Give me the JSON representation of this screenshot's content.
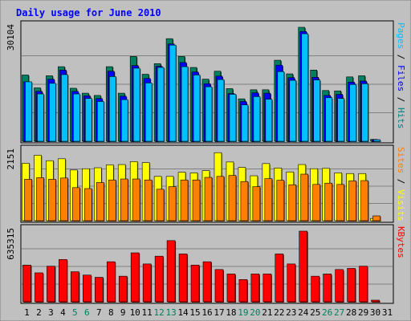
{
  "chart_data": {
    "type": "bar",
    "title": "Daily usage for June 2010",
    "categories": [
      "1",
      "2",
      "3",
      "4",
      "5",
      "6",
      "7",
      "8",
      "9",
      "10",
      "11",
      "12",
      "13",
      "14",
      "15",
      "16",
      "17",
      "18",
      "19",
      "20",
      "21",
      "22",
      "23",
      "24",
      "25",
      "26",
      "27",
      "28",
      "29",
      "30",
      "31"
    ],
    "weekend_days": [
      "5",
      "6",
      "12",
      "13",
      "19",
      "20",
      "26",
      "27"
    ],
    "panels": [
      {
        "id": "hits",
        "max_label": "30104",
        "ymax": 30104,
        "right_labels": [
          {
            "text": "Pages",
            "color": "#00c0ff"
          },
          {
            "text": " / ",
            "color": "#000000"
          },
          {
            "text": "Files",
            "color": "#0000ff"
          },
          {
            "text": " / ",
            "color": "#000000"
          },
          {
            "text": "Hits",
            "color": "#008080"
          }
        ],
        "series": [
          {
            "name": "Hits",
            "color": "#008060",
            "values": [
              17500,
              14100,
              17300,
              19700,
              14000,
              12700,
              12100,
              19700,
              12700,
              22400,
              17700,
              20500,
              27100,
              22400,
              19500,
              16400,
              18500,
              13900,
              11200,
              13600,
              13600,
              21400,
              17800,
              30104,
              18800,
              13400,
              13300,
              17000,
              17300,
              500,
              0
            ]
          },
          {
            "name": "Files",
            "color": "#0000ff",
            "values": [
              15700,
              13200,
              16400,
              18800,
              13200,
              12000,
              11300,
              18500,
              11900,
              20000,
              16600,
              19800,
              25700,
              20800,
              18300,
              15200,
              17200,
              12600,
              10500,
              12800,
              12700,
              20100,
              16800,
              29000,
              16900,
              12100,
              12400,
              15600,
              15900,
              400,
              0
            ]
          },
          {
            "name": "Pages",
            "color": "#00c0ff",
            "values": [
              15700,
              12500,
              15300,
              17600,
              12500,
              11300,
              10500,
              17100,
              11000,
              19300,
              15400,
              19500,
              25400,
              19700,
              17500,
              14400,
              16300,
              12400,
              9600,
              11800,
              11100,
              18400,
              16100,
              28400,
              16200,
              11500,
              11300,
              15000,
              15200,
              400,
              0
            ]
          }
        ]
      },
      {
        "id": "sites",
        "max_label": "2151",
        "ymax": 2151,
        "right_labels": [
          {
            "text": "Sites",
            "color": "#ff8000"
          },
          {
            "text": " / ",
            "color": "#000000"
          },
          {
            "text": "Visits",
            "color": "#ffff00"
          }
        ],
        "series": [
          {
            "name": "Visits",
            "color": "#ffff00",
            "values": [
              1790,
              2040,
              1870,
              1930,
              1580,
              1620,
              1650,
              1740,
              1750,
              1840,
              1810,
              1380,
              1380,
              1510,
              1490,
              1560,
              2120,
              1830,
              1660,
              1400,
              1780,
              1640,
              1520,
              1750,
              1620,
              1630,
              1490,
              1470,
              1470,
              70,
              0
            ]
          },
          {
            "name": "Sites",
            "color": "#ff8000",
            "values": [
              1290,
              1340,
              1290,
              1330,
              1030,
              1000,
              1190,
              1270,
              1300,
              1300,
              1270,
              980,
              1060,
              1270,
              1270,
              1350,
              1380,
              1410,
              1220,
              1060,
              1310,
              1260,
              1120,
              1450,
              1130,
              1170,
              1130,
              1240,
              1250,
              150,
              0
            ]
          }
        ]
      },
      {
        "id": "kbytes",
        "max_label": "635315",
        "ymax": 635315,
        "right_labels": [
          {
            "text": "KBytes",
            "color": "#ff0000"
          }
        ],
        "series": [
          {
            "name": "KBytes",
            "color": "#ff0000",
            "values": [
              330000,
              260000,
              320000,
              380000,
              270000,
              240000,
              220000,
              360000,
              230000,
              440000,
              340000,
              410000,
              550000,
              430000,
              330000,
              360000,
              290000,
              250000,
              200000,
              250000,
              250000,
              430000,
              340000,
              635315,
              230000,
              250000,
              290000,
              300000,
              320000,
              10000,
              0
            ]
          }
        ]
      }
    ],
    "colors": {
      "background": "#c0c0c0",
      "title": "#0000ff",
      "gridline": "#808080",
      "weekend_label": "#00805c",
      "weekday_label": "#000000"
    },
    "legend": "right"
  }
}
